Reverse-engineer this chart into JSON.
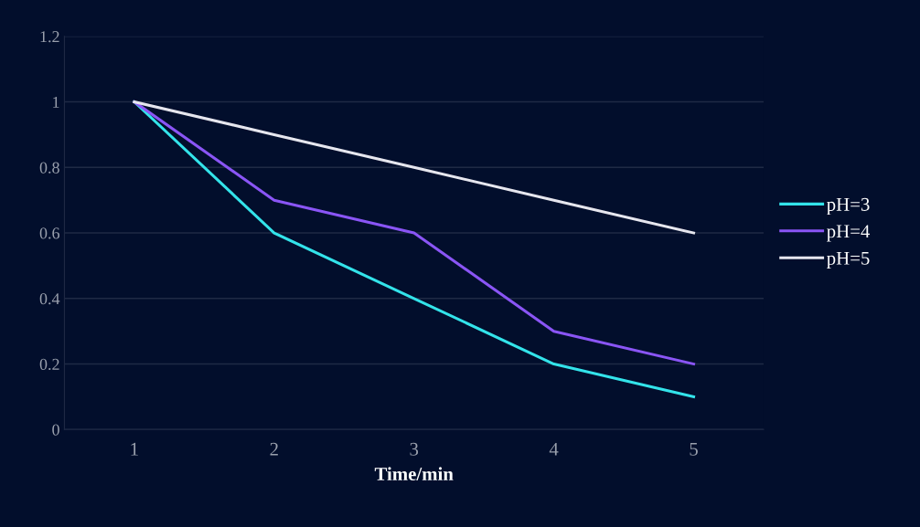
{
  "chart_data": {
    "type": "line",
    "xlabel": "Time/min",
    "categories": [
      "1",
      "2",
      "3",
      "4",
      "5"
    ],
    "series": [
      {
        "name": "pH=3",
        "color": "#33e3ea",
        "values": [
          1,
          0.6,
          0.4,
          0.2,
          0.1
        ]
      },
      {
        "name": "pH=4",
        "color": "#8a55f5",
        "values": [
          1,
          0.7,
          0.6,
          0.3,
          0.2
        ]
      },
      {
        "name": "pH=5",
        "color": "#e6e6ee",
        "values": [
          1,
          0.9,
          0.8,
          0.7,
          0.6
        ]
      }
    ],
    "ylim": [
      0,
      1.2
    ],
    "yticks": [
      0,
      0.2,
      0.4,
      0.6,
      0.8,
      1,
      1.2
    ],
    "grid": "y",
    "legend": "right",
    "marker": "none",
    "line_style": "solid"
  }
}
